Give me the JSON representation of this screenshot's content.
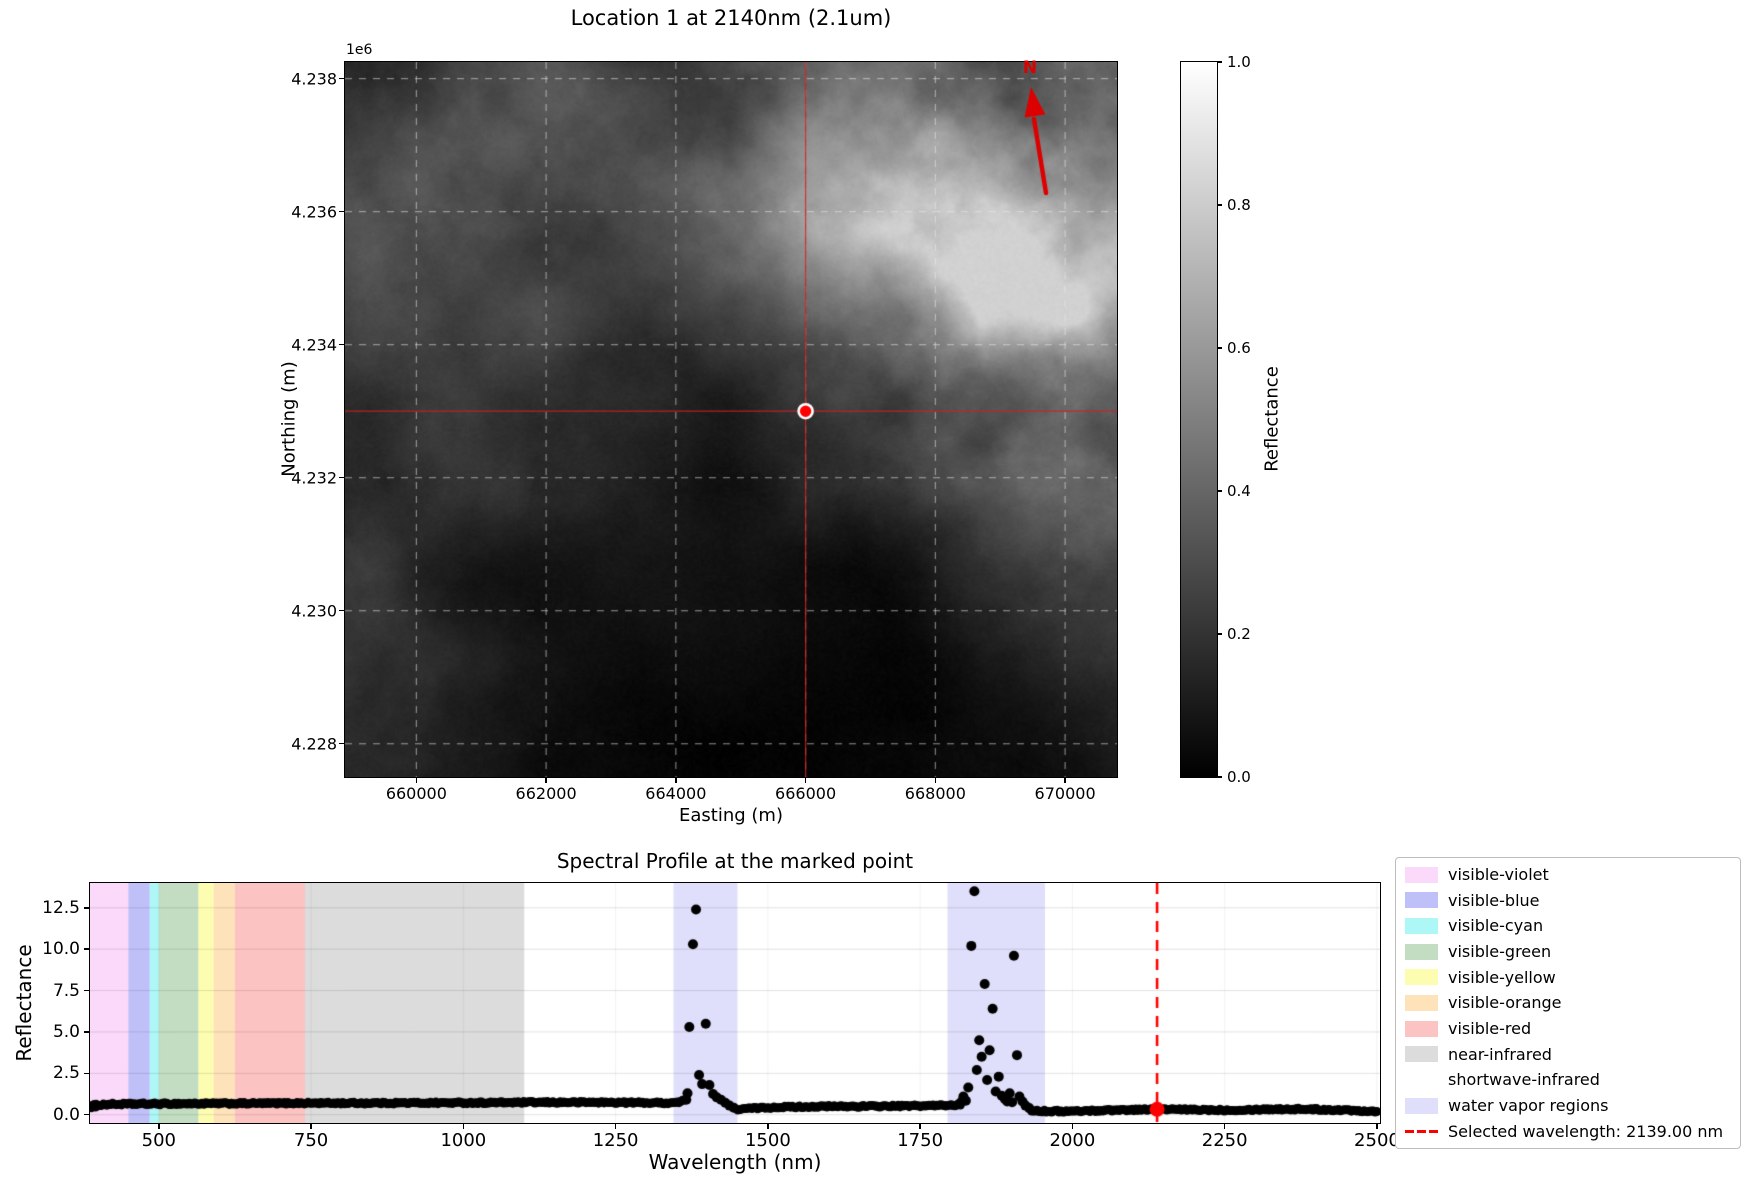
{
  "chart_data": [
    {
      "type": "heatmap",
      "title": "Location 1 at 2140nm (2.1um)",
      "xlabel": "Easting (m)",
      "ylabel": "Northing (m)",
      "y_offset_label": "1e6",
      "north_arrow_label": "N",
      "extent": [
        658900,
        670800,
        4227500,
        4238250
      ],
      "x_ticks": [
        {
          "value": 660000,
          "label": "660000"
        },
        {
          "value": 662000,
          "label": "662000"
        },
        {
          "value": 664000,
          "label": "664000"
        },
        {
          "value": 666000,
          "label": "666000"
        },
        {
          "value": 668000,
          "label": "668000"
        },
        {
          "value": 670000,
          "label": "670000"
        }
      ],
      "y_ticks": [
        {
          "value": 4238000,
          "label": "4.238"
        },
        {
          "value": 4236000,
          "label": "4.236"
        },
        {
          "value": 4234000,
          "label": "4.234"
        },
        {
          "value": 4232000,
          "label": "4.232"
        },
        {
          "value": 4230000,
          "label": "4.230"
        },
        {
          "value": 4228000,
          "label": "4.228"
        }
      ],
      "grid": "dashed",
      "marked_point": {
        "easting": 666000,
        "northing": 4233000,
        "marker_color": "#ff0000",
        "marker_edge": "#ffffff",
        "crosshair_color": "#cc2222"
      },
      "north_arrow_color": "#dd0000",
      "colorbar": {
        "label": "Reflectance",
        "range": [
          0.0,
          1.0
        ],
        "cmap": "gray",
        "ticks": [
          {
            "value": 1.0,
            "label": "1.0"
          },
          {
            "value": 0.8,
            "label": "0.8"
          },
          {
            "value": 0.6,
            "label": "0.6"
          },
          {
            "value": 0.4,
            "label": "0.4"
          },
          {
            "value": 0.2,
            "label": "0.2"
          },
          {
            "value": 0.0,
            "label": "0.0"
          }
        ]
      },
      "image_description": "Grayscale reflectance image of terrain at 2140nm; bright cloud-like high-reflectance texture in the upper-right and mid-right, darker low-reflectance areas across the bottom and center-left."
    },
    {
      "type": "scatter",
      "title": "Spectral Profile at the marked point",
      "xlabel": "Wavelength (nm)",
      "ylabel": "Reflectance",
      "xlim": [
        387,
        2505
      ],
      "ylim": [
        -0.5,
        14.0
      ],
      "marker_color": "#000000",
      "x_ticks": [
        {
          "value": 500,
          "label": "500"
        },
        {
          "value": 750,
          "label": "750"
        },
        {
          "value": 1000,
          "label": "1000"
        },
        {
          "value": 1250,
          "label": "1250"
        },
        {
          "value": 1500,
          "label": "1500"
        },
        {
          "value": 1750,
          "label": "1750"
        },
        {
          "value": 2000,
          "label": "2000"
        },
        {
          "value": 2250,
          "label": "2250"
        },
        {
          "value": 2500,
          "label": "2500"
        }
      ],
      "y_ticks": [
        {
          "value": 0.0,
          "label": "0.0"
        },
        {
          "value": 2.5,
          "label": "2.5"
        },
        {
          "value": 5.0,
          "label": "5.0"
        },
        {
          "value": 7.5,
          "label": "7.5"
        },
        {
          "value": 10.0,
          "label": "10.0"
        },
        {
          "value": 12.5,
          "label": "12.5"
        }
      ],
      "bands": [
        {
          "name": "visible-violet",
          "range": [
            380,
            450
          ],
          "color": "rgba(238,130,238,0.30)"
        },
        {
          "name": "visible-blue",
          "range": [
            450,
            485
          ],
          "color": "rgba(45,45,235,0.30)"
        },
        {
          "name": "visible-cyan",
          "range": [
            485,
            500
          ],
          "color": "rgba(0,230,230,0.32)"
        },
        {
          "name": "visible-green",
          "range": [
            500,
            565
          ],
          "color": "rgba(20,125,20,0.26)"
        },
        {
          "name": "visible-yellow",
          "range": [
            565,
            590
          ],
          "color": "rgba(250,250,60,0.40)"
        },
        {
          "name": "visible-orange",
          "range": [
            590,
            625
          ],
          "color": "rgba(250,165,40,0.32)"
        },
        {
          "name": "visible-red",
          "range": [
            625,
            740
          ],
          "color": "rgba(245,40,40,0.28)"
        },
        {
          "name": "near-infrared",
          "range": [
            740,
            1100
          ],
          "color": "rgba(128,128,128,0.28)"
        },
        {
          "name": "shortwave-infrared",
          "range": [
            1100,
            2500
          ],
          "color": "rgba(0,0,0,0)"
        },
        {
          "name": "water-vapor-region-1",
          "range": [
            1345,
            1450
          ],
          "color": "rgba(110,110,235,0.22)"
        },
        {
          "name": "water-vapor-region-2",
          "range": [
            1795,
            1955
          ],
          "color": "rgba(110,110,235,0.22)"
        }
      ],
      "baseline": {
        "step_nm": 3,
        "jitter": 0.055,
        "skip_ranges": [
          [
            1364,
            1447
          ],
          [
            1817,
            1932
          ]
        ],
        "anchors": [
          [
            387,
            0.5
          ],
          [
            395,
            0.58
          ],
          [
            420,
            0.63
          ],
          [
            480,
            0.65
          ],
          [
            560,
            0.67
          ],
          [
            640,
            0.68
          ],
          [
            720,
            0.7
          ],
          [
            800,
            0.7
          ],
          [
            900,
            0.71
          ],
          [
            1000,
            0.72
          ],
          [
            1100,
            0.74
          ],
          [
            1200,
            0.75
          ],
          [
            1290,
            0.73
          ],
          [
            1340,
            0.71
          ],
          [
            1354,
            0.76
          ],
          [
            1362,
            0.85
          ],
          [
            1448,
            0.33
          ],
          [
            1480,
            0.4
          ],
          [
            1520,
            0.46
          ],
          [
            1600,
            0.5
          ],
          [
            1680,
            0.51
          ],
          [
            1760,
            0.54
          ],
          [
            1800,
            0.57
          ],
          [
            1816,
            0.62
          ],
          [
            1934,
            0.26
          ],
          [
            1960,
            0.21
          ],
          [
            2000,
            0.21
          ],
          [
            2060,
            0.27
          ],
          [
            2139,
            0.33
          ],
          [
            2200,
            0.3
          ],
          [
            2260,
            0.28
          ],
          [
            2320,
            0.33
          ],
          [
            2380,
            0.34
          ],
          [
            2440,
            0.28
          ],
          [
            2500,
            0.21
          ]
        ]
      },
      "peak_points": [
        [
          1366,
          0.9
        ],
        [
          1368,
          1.3
        ],
        [
          1371,
          5.3
        ],
        [
          1377,
          10.3
        ],
        [
          1382,
          12.4
        ],
        [
          1387,
          2.4
        ],
        [
          1392,
          1.85
        ],
        [
          1398,
          5.5
        ],
        [
          1404,
          1.8
        ],
        [
          1410,
          1.25
        ],
        [
          1416,
          1.05
        ],
        [
          1423,
          0.9
        ],
        [
          1430,
          0.72
        ],
        [
          1437,
          0.55
        ],
        [
          1444,
          0.42
        ],
        [
          1818,
          0.8
        ],
        [
          1821,
          1.1
        ],
        [
          1825,
          0.85
        ],
        [
          1829,
          1.65
        ],
        [
          1834,
          10.2
        ],
        [
          1839,
          13.5
        ],
        [
          1843,
          2.7
        ],
        [
          1847,
          4.5
        ],
        [
          1851,
          3.5
        ],
        [
          1856,
          7.9
        ],
        [
          1860,
          2.1
        ],
        [
          1864,
          3.9
        ],
        [
          1869,
          6.4
        ],
        [
          1874,
          1.4
        ],
        [
          1879,
          2.3
        ],
        [
          1884,
          1.15
        ],
        [
          1889,
          0.95
        ],
        [
          1893,
          0.8
        ],
        [
          1897,
          1.3
        ],
        [
          1901,
          0.75
        ],
        [
          1904,
          9.6
        ],
        [
          1909,
          3.6
        ],
        [
          1913,
          1.1
        ],
        [
          1918,
          0.8
        ],
        [
          1923,
          0.55
        ],
        [
          1929,
          0.4
        ]
      ],
      "edge_points": [
        [
          389,
          0.42
        ],
        [
          392,
          0.55
        ],
        [
          396,
          0.47
        ]
      ],
      "selected": {
        "wavelength_nm": 2139.0,
        "value": 0.33,
        "label": "Selected wavelength: 2139.00 nm",
        "color": "#ff0000"
      },
      "legend": {
        "items": [
          {
            "label": "visible-violet",
            "type": "patch",
            "swatch": "rgba(238,130,238,0.30)"
          },
          {
            "label": "visible-blue",
            "type": "patch",
            "swatch": "rgba(45,45,235,0.30)"
          },
          {
            "label": "visible-cyan",
            "type": "patch",
            "swatch": "rgba(0,230,230,0.32)"
          },
          {
            "label": "visible-green",
            "type": "patch",
            "swatch": "rgba(20,125,20,0.26)"
          },
          {
            "label": "visible-yellow",
            "type": "patch",
            "swatch": "rgba(250,250,60,0.40)"
          },
          {
            "label": "visible-orange",
            "type": "patch",
            "swatch": "rgba(250,165,40,0.32)"
          },
          {
            "label": "visible-red",
            "type": "patch",
            "swatch": "rgba(245,40,40,0.28)"
          },
          {
            "label": "near-infrared",
            "type": "patch",
            "swatch": "rgba(128,128,128,0.28)"
          },
          {
            "label": "shortwave-infrared",
            "type": "patch",
            "swatch": "rgba(0,0,0,0)"
          },
          {
            "label": "water vapor regions",
            "type": "patch",
            "swatch": "rgba(110,110,235,0.22)"
          },
          {
            "label": "Selected wavelength: 2139.00 nm",
            "type": "dashed-line",
            "swatch": "#ff0000"
          }
        ]
      }
    }
  ]
}
